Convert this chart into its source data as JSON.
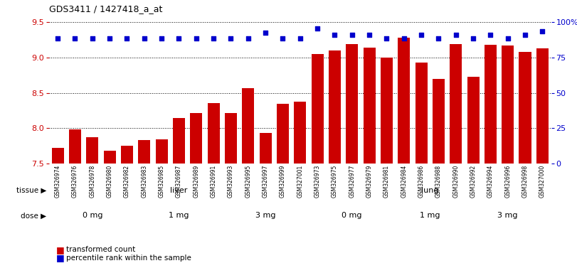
{
  "title": "GDS3411 / 1427418_a_at",
  "samples": [
    "GSM326974",
    "GSM326976",
    "GSM326978",
    "GSM326980",
    "GSM326982",
    "GSM326983",
    "GSM326985",
    "GSM326987",
    "GSM326989",
    "GSM326991",
    "GSM326993",
    "GSM326995",
    "GSM326997",
    "GSM326999",
    "GSM327001",
    "GSM326973",
    "GSM326975",
    "GSM326977",
    "GSM326979",
    "GSM326981",
    "GSM326984",
    "GSM326986",
    "GSM326988",
    "GSM326990",
    "GSM326992",
    "GSM326994",
    "GSM326996",
    "GSM326998",
    "GSM327000"
  ],
  "bar_values": [
    7.72,
    7.98,
    7.87,
    7.68,
    7.75,
    7.83,
    7.84,
    8.15,
    8.22,
    8.36,
    8.22,
    8.57,
    7.93,
    8.35,
    8.38,
    9.05,
    9.1,
    9.19,
    9.14,
    9.0,
    9.28,
    8.93,
    8.7,
    9.19,
    8.73,
    9.18,
    9.17,
    9.08,
    9.13
  ],
  "percentile_values": [
    9.27,
    9.27,
    9.27,
    9.27,
    9.27,
    9.27,
    9.27,
    9.27,
    9.27,
    9.27,
    9.27,
    9.27,
    9.35,
    9.27,
    9.27,
    9.41,
    9.32,
    9.32,
    9.32,
    9.27,
    9.27,
    9.32,
    9.27,
    9.32,
    9.27,
    9.32,
    9.27,
    9.32,
    9.37
  ],
  "ylim": [
    7.5,
    9.5
  ],
  "yticks_left": [
    7.5,
    8.0,
    8.5,
    9.0,
    9.5
  ],
  "bar_color": "#CC0000",
  "dot_color": "#0000CC",
  "tissue_groups": [
    {
      "label": "liver",
      "start": 0,
      "end": 15,
      "color": "#90EE90"
    },
    {
      "label": "lung",
      "start": 15,
      "end": 29,
      "color": "#00DD00"
    }
  ],
  "dose_groups": [
    {
      "label": "0 mg",
      "start": 0,
      "end": 5,
      "color": "#EE82EE"
    },
    {
      "label": "1 mg",
      "start": 5,
      "end": 10,
      "color": "#DD44DD"
    },
    {
      "label": "3 mg",
      "start": 10,
      "end": 15,
      "color": "#BB00BB"
    },
    {
      "label": "0 mg",
      "start": 15,
      "end": 20,
      "color": "#EE82EE"
    },
    {
      "label": "1 mg",
      "start": 20,
      "end": 24,
      "color": "#DD44DD"
    },
    {
      "label": "3 mg",
      "start": 24,
      "end": 29,
      "color": "#BB00BB"
    }
  ],
  "right_yticks_perc": [
    0,
    25,
    50,
    75,
    100
  ],
  "right_ylabel_color": "#0000CC",
  "bar_color_legend": "#CC0000",
  "dot_color_legend": "#0000CC"
}
